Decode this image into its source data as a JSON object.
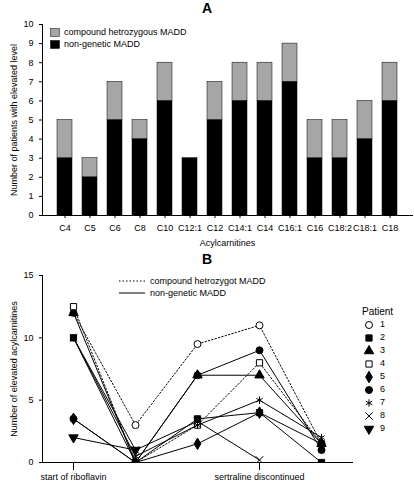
{
  "chart_data": [
    {
      "type": "bar",
      "title": "A",
      "stacked": true,
      "categories": [
        "C4",
        "C5",
        "C6",
        "C8",
        "C10",
        "C12:1",
        "C12",
        "C14:1",
        "C14",
        "C16:1",
        "C16",
        "C18:2",
        "C18:1",
        "C18"
      ],
      "series": [
        {
          "name": "non-genetic MADD",
          "color": "#000000",
          "values": [
            3,
            2,
            5,
            4,
            6,
            3,
            5,
            6,
            6,
            7,
            3,
            3,
            4,
            6
          ]
        },
        {
          "name": "compound hetrozygous MADD",
          "color": "#a6a6a6",
          "values": [
            2,
            1,
            2,
            1,
            2,
            0,
            2,
            2,
            2,
            2,
            2,
            2,
            2,
            2
          ]
        }
      ],
      "x_label": "Acylcarnitines",
      "y_label": "Number of patients with elevated level",
      "ylim": [
        0,
        10
      ],
      "yticks": [
        0,
        1,
        2,
        3,
        4,
        5,
        6,
        7,
        8,
        9,
        10
      ],
      "legend": "upper left"
    },
    {
      "type": "line",
      "title": "B",
      "categories": [
        "start of riboflavin",
        null,
        null,
        "sertraline discontinued",
        null
      ],
      "series": [
        {
          "name": "1",
          "color": "#000000",
          "marker": "circle-open",
          "line_style": "dotted",
          "values": [
            12,
            3,
            9.5,
            11,
            1.5
          ]
        },
        {
          "name": "2",
          "color": "#000000",
          "marker": "square",
          "line_style": "solid",
          "values": [
            10,
            0,
            3.5,
            4,
            0
          ]
        },
        {
          "name": "3",
          "color": "#000000",
          "marker": "triangle",
          "line_style": "solid",
          "values": [
            12,
            0,
            7,
            7,
            1.5
          ]
        },
        {
          "name": "4",
          "color": "#000000",
          "marker": "square-open",
          "line_style": "dotted",
          "values": [
            12.5,
            0,
            3,
            8,
            1.5
          ]
        },
        {
          "name": "5",
          "color": "#000000",
          "marker": "diamond",
          "line_style": "solid",
          "values": [
            3.5,
            0,
            1.5,
            4,
            1.5
          ]
        },
        {
          "name": "6",
          "color": "#000000",
          "marker": "circle",
          "line_style": "solid",
          "values": [
            3.5,
            0,
            7,
            9,
            1
          ]
        },
        {
          "name": "7",
          "color": "#000000",
          "marker": "asterisk",
          "line_style": "solid",
          "values": [
            10,
            0.5,
            3,
            5,
            2
          ]
        },
        {
          "name": "8",
          "color": "#000000",
          "marker": "times",
          "line_style": "solid",
          "values": [
            10,
            1,
            3.3,
            0.2,
            null
          ]
        },
        {
          "name": "9",
          "color": "#000000",
          "marker": "triangle-down",
          "line_style": "solid",
          "values": [
            2,
            1,
            null,
            null,
            null
          ]
        }
      ],
      "line_style_legend": [
        {
          "name": "compound hetrozygot MADD",
          "line_style": "dotted"
        },
        {
          "name": "non-genetic MADD",
          "line_style": "solid"
        }
      ],
      "legend_title": "Patient",
      "legend": "right",
      "y_label": "Number of elevated acylcarnitines",
      "ylim": [
        0,
        15
      ],
      "yticks": [
        0,
        5,
        10,
        15
      ]
    }
  ]
}
